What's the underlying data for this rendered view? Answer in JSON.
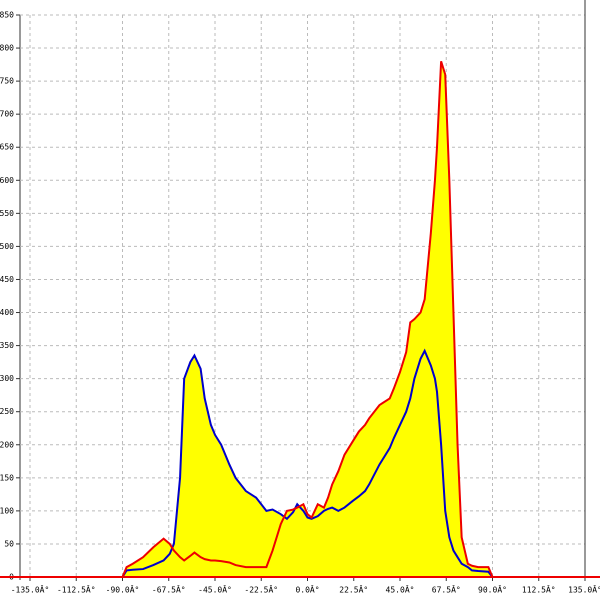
{
  "chart_data": {
    "type": "area",
    "x": [
      -90,
      -88,
      -85,
      -80,
      -75,
      -70,
      -67,
      -65,
      -62,
      -60,
      -57,
      -55,
      -52,
      -50,
      -47,
      -45,
      -42,
      -38,
      -35,
      -30,
      -25,
      -20,
      -17,
      -13,
      -10,
      -7,
      -5,
      -2,
      0,
      2,
      5,
      8,
      10,
      12,
      15,
      18,
      22,
      25,
      28,
      30,
      35,
      40,
      42,
      45,
      48,
      50,
      52,
      55,
      57,
      60,
      62,
      63,
      65,
      67,
      69,
      71,
      73,
      75,
      78,
      80,
      83,
      88,
      90
    ],
    "series": [
      {
        "color": "#0000cc",
        "values": [
          0,
          10,
          11,
          12,
          18,
          25,
          35,
          50,
          150,
          300,
          325,
          335,
          315,
          270,
          230,
          215,
          200,
          170,
          150,
          130,
          120,
          100,
          102,
          95,
          88,
          98,
          110,
          100,
          90,
          88,
          92,
          100,
          103,
          105,
          100,
          105,
          115,
          122,
          130,
          140,
          170,
          195,
          210,
          230,
          250,
          270,
          300,
          330,
          342,
          320,
          300,
          280,
          200,
          100,
          60,
          40,
          30,
          20,
          15,
          10,
          9,
          8,
          0
        ]
      },
      {
        "color": "#ee0000",
        "values": [
          0,
          15,
          20,
          30,
          45,
          58,
          50,
          40,
          30,
          25,
          32,
          37,
          30,
          27,
          25,
          25,
          24,
          22,
          18,
          15,
          15,
          15,
          40,
          80,
          100,
          102,
          105,
          110,
          95,
          90,
          110,
          105,
          120,
          140,
          160,
          185,
          205,
          220,
          230,
          240,
          260,
          270,
          285,
          310,
          340,
          385,
          390,
          400,
          420,
          520,
          600,
          650,
          780,
          760,
          600,
          400,
          200,
          60,
          20,
          17,
          15,
          15,
          0
        ]
      }
    ],
    "fill_color": "#ffff00",
    "xlim": [
      -135,
      135
    ],
    "xticks": [
      {
        "value": -135,
        "label": "-135.0Â°"
      },
      {
        "value": -112.5,
        "label": "-112.5Â°"
      },
      {
        "value": -90,
        "label": "-90.0Â°"
      },
      {
        "value": -67.5,
        "label": "-67.5Â°"
      },
      {
        "value": -45,
        "label": "-45.0Â°"
      },
      {
        "value": -22.5,
        "label": "-22.5Â°"
      },
      {
        "value": 0,
        "label": "0.0Â°"
      },
      {
        "value": 22.5,
        "label": "22.5Â°"
      },
      {
        "value": 45,
        "label": "45.0Â°"
      },
      {
        "value": 67.5,
        "label": "67.5Â°"
      },
      {
        "value": 90,
        "label": "90.0Â°"
      },
      {
        "value": 112.5,
        "label": "112.5Â°"
      },
      {
        "value": 135,
        "label": "135.0Â°"
      }
    ],
    "ylim": [
      0,
      850
    ],
    "yticks": [
      0,
      50,
      100,
      150,
      200,
      250,
      300,
      350,
      400,
      450,
      500,
      550,
      600,
      650,
      700,
      750,
      800,
      850
    ],
    "grid": true
  }
}
